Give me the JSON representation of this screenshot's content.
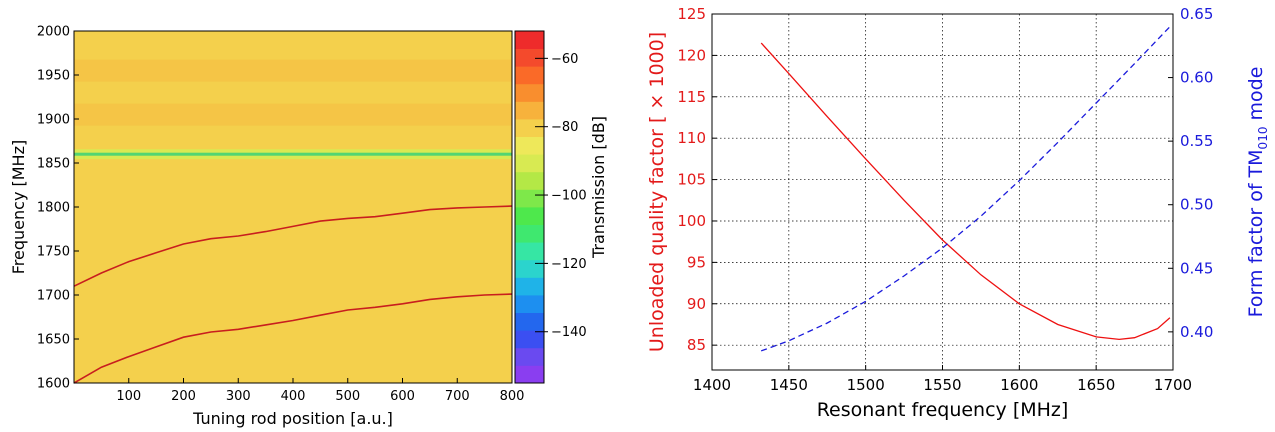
{
  "chart_data": [
    {
      "type": "heatmap",
      "xlabel": "Tuning rod position [a.u.]",
      "ylabel": "Frequency [MHz]",
      "xlim": [
        0,
        800
      ],
      "ylim": [
        1600,
        2000
      ],
      "x_ticks": [
        100,
        200,
        300,
        400,
        500,
        600,
        700,
        800
      ],
      "y_ticks": [
        1600,
        1650,
        1700,
        1750,
        1800,
        1850,
        1900,
        1950,
        2000
      ],
      "colorbar": {
        "label": "Transmission [dB]",
        "range": [
          -155,
          -52
        ],
        "ticks": [
          -60,
          -80,
          -100,
          -120,
          -140
        ],
        "colors": [
          "#8a3ef0",
          "#6a4af0",
          "#3b4ff2",
          "#2367ee",
          "#1d8ff0",
          "#1fb3e8",
          "#2bd4cd",
          "#36e6a4",
          "#3fe86f",
          "#4ee84c",
          "#7ee84a",
          "#b4e846",
          "#d8ea52",
          "#eee85a",
          "#f4d04c",
          "#f7b23c",
          "#f98e2e",
          "#fa6a28",
          "#f44a2c",
          "#ee2b2b"
        ]
      },
      "background_level_db": -78,
      "bands": [
        {
          "frequency": 1860,
          "level_db": -92
        },
        {
          "frequency": 1955,
          "level_db": -74
        },
        {
          "frequency": 1905,
          "level_db": -74
        }
      ],
      "series": [
        {
          "x": [
            0,
            50,
            100,
            150,
            200,
            250,
            300,
            350,
            400,
            450,
            500,
            550,
            600,
            650,
            700,
            750,
            800
          ],
          "y": [
            1710,
            1725,
            1738,
            1748,
            1758,
            1764,
            1767,
            1772,
            1778,
            1784,
            1787,
            1789,
            1793,
            1797,
            1799,
            1800,
            1801
          ]
        },
        {
          "x": [
            0,
            50,
            100,
            150,
            200,
            250,
            300,
            350,
            400,
            450,
            500,
            550,
            600,
            650,
            700,
            750,
            800
          ],
          "y": [
            1600,
            1618,
            1630,
            1641,
            1652,
            1658,
            1661,
            1666,
            1671,
            1677,
            1683,
            1686,
            1690,
            1695,
            1698,
            1700,
            1701
          ]
        }
      ]
    },
    {
      "type": "line",
      "xlabel": "Resonant frequency [MHz]",
      "ylabel": "Unloaded quality factor [ × 1000]",
      "y2label_prefix": "Form factor of TM",
      "y2label_sub": "010",
      "y2label_suffix": " mode",
      "xlim": [
        1400,
        1700
      ],
      "ylim": [
        82,
        125
      ],
      "y2lim": [
        0.37,
        0.65
      ],
      "x_ticks": [
        1400,
        1450,
        1500,
        1550,
        1600,
        1650,
        1700
      ],
      "y_ticks": [
        85,
        90,
        95,
        100,
        105,
        110,
        115,
        120,
        125
      ],
      "y2_ticks": [
        0.4,
        0.45,
        0.5,
        0.55,
        0.6,
        0.65
      ],
      "grid": true,
      "series": [
        {
          "axis": "left",
          "color": "#ee1111",
          "style": "solid",
          "x": [
            1432,
            1450,
            1475,
            1500,
            1525,
            1550,
            1575,
            1600,
            1625,
            1650,
            1665,
            1675,
            1690,
            1698
          ],
          "y": [
            121.5,
            117.8,
            112.6,
            107.5,
            102.5,
            97.7,
            93.5,
            90.0,
            87.5,
            86.0,
            85.7,
            85.9,
            87.0,
            88.3
          ]
        },
        {
          "axis": "right",
          "color": "#1a1adb",
          "style": "dashed",
          "x": [
            1432,
            1450,
            1475,
            1500,
            1525,
            1550,
            1575,
            1600,
            1625,
            1650,
            1675,
            1698
          ],
          "y": [
            0.385,
            0.393,
            0.407,
            0.424,
            0.444,
            0.466,
            0.491,
            0.519,
            0.549,
            0.58,
            0.611,
            0.64
          ]
        }
      ]
    }
  ]
}
